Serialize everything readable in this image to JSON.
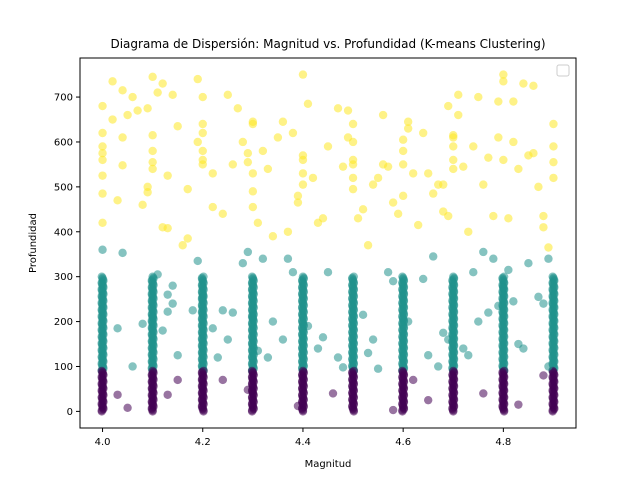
{
  "chart_data": {
    "type": "scatter",
    "title": "Diagrama de Dispersión: Magnitud vs. Profundidad (K-means Clustering)",
    "xlabel": "Magnitud",
    "ylabel": "Profundidad",
    "xlim": [
      3.955,
      4.945
    ],
    "ylim": [
      -37,
      787
    ],
    "xticks": [
      4.0,
      4.2,
      4.4,
      4.6,
      4.8
    ],
    "yticks": [
      0,
      100,
      200,
      300,
      400,
      500,
      600,
      700
    ],
    "grid": false,
    "legend": {
      "placement": "top-right",
      "entries": []
    },
    "marker_opacity": 0.55,
    "columns": [
      4.0,
      4.1,
      4.2,
      4.3,
      4.4,
      4.5,
      4.6,
      4.7,
      4.8,
      4.9
    ],
    "clusters": [
      {
        "color": "#440154",
        "column_range": [
          0,
          90
        ],
        "points": [
          [
            4.03,
            37
          ],
          [
            4.05,
            8
          ],
          [
            4.13,
            37
          ],
          [
            4.15,
            70
          ],
          [
            4.24,
            70
          ],
          [
            4.29,
            48
          ],
          [
            4.39,
            12
          ],
          [
            4.46,
            40
          ],
          [
            4.58,
            3
          ],
          [
            4.62,
            70
          ],
          [
            4.65,
            25
          ],
          [
            4.76,
            40
          ],
          [
            4.83,
            15
          ],
          [
            4.88,
            80
          ]
        ]
      },
      {
        "color": "#21918c",
        "column_range": [
          90,
          300
        ],
        "points": [
          [
            4.0,
            360
          ],
          [
            4.03,
            185
          ],
          [
            4.04,
            353
          ],
          [
            4.06,
            100
          ],
          [
            4.08,
            195
          ],
          [
            4.1,
            210
          ],
          [
            4.11,
            305
          ],
          [
            4.12,
            180
          ],
          [
            4.13,
            260
          ],
          [
            4.13,
            222
          ],
          [
            4.14,
            240
          ],
          [
            4.14,
            280
          ],
          [
            4.15,
            125
          ],
          [
            4.18,
            225
          ],
          [
            4.19,
            335
          ],
          [
            4.2,
            255
          ],
          [
            4.22,
            185
          ],
          [
            4.23,
            120
          ],
          [
            4.24,
            225
          ],
          [
            4.25,
            160
          ],
          [
            4.26,
            220
          ],
          [
            4.28,
            330
          ],
          [
            4.29,
            355
          ],
          [
            4.3,
            210
          ],
          [
            4.31,
            135
          ],
          [
            4.32,
            340
          ],
          [
            4.33,
            120
          ],
          [
            4.34,
            200
          ],
          [
            4.36,
            160
          ],
          [
            4.37,
            340
          ],
          [
            4.38,
            310
          ],
          [
            4.41,
            190
          ],
          [
            4.43,
            140
          ],
          [
            4.44,
            165
          ],
          [
            4.45,
            310
          ],
          [
            4.47,
            120
          ],
          [
            4.48,
            98
          ],
          [
            4.52,
            215
          ],
          [
            4.53,
            130
          ],
          [
            4.54,
            160
          ],
          [
            4.55,
            95
          ],
          [
            4.57,
            310
          ],
          [
            4.58,
            290
          ],
          [
            4.61,
            200
          ],
          [
            4.64,
            295
          ],
          [
            4.65,
            125
          ],
          [
            4.66,
            345
          ],
          [
            4.67,
            100
          ],
          [
            4.68,
            175
          ],
          [
            4.69,
            160
          ],
          [
            4.72,
            140
          ],
          [
            4.73,
            125
          ],
          [
            4.74,
            310
          ],
          [
            4.75,
            200
          ],
          [
            4.76,
            355
          ],
          [
            4.77,
            220
          ],
          [
            4.78,
            340
          ],
          [
            4.79,
            235
          ],
          [
            4.8,
            275
          ],
          [
            4.81,
            315
          ],
          [
            4.82,
            245
          ],
          [
            4.83,
            150
          ],
          [
            4.84,
            140
          ],
          [
            4.85,
            330
          ],
          [
            4.87,
            255
          ],
          [
            4.88,
            240
          ],
          [
            4.89,
            100
          ],
          [
            4.89,
            340
          ]
        ]
      },
      {
        "color": "#fde725",
        "points": [
          [
            4.0,
            420
          ],
          [
            4.0,
            485
          ],
          [
            4.0,
            525
          ],
          [
            4.0,
            560
          ],
          [
            4.0,
            575
          ],
          [
            4.0,
            590
          ],
          [
            4.0,
            620
          ],
          [
            4.0,
            680
          ],
          [
            4.02,
            735
          ],
          [
            4.02,
            650
          ],
          [
            4.03,
            470
          ],
          [
            4.04,
            715
          ],
          [
            4.04,
            610
          ],
          [
            4.04,
            548
          ],
          [
            4.05,
            660
          ],
          [
            4.06,
            700
          ],
          [
            4.07,
            670
          ],
          [
            4.08,
            460
          ],
          [
            4.09,
            500
          ],
          [
            4.09,
            488
          ],
          [
            4.09,
            675
          ],
          [
            4.1,
            745
          ],
          [
            4.1,
            615
          ],
          [
            4.1,
            580
          ],
          [
            4.1,
            555
          ],
          [
            4.1,
            540
          ],
          [
            4.11,
            710
          ],
          [
            4.12,
            410
          ],
          [
            4.12,
            730
          ],
          [
            4.13,
            408
          ],
          [
            4.13,
            525
          ],
          [
            4.14,
            705
          ],
          [
            4.15,
            635
          ],
          [
            4.16,
            370
          ],
          [
            4.17,
            495
          ],
          [
            4.17,
            385
          ],
          [
            4.19,
            740
          ],
          [
            4.19,
            600
          ],
          [
            4.2,
            550
          ],
          [
            4.2,
            560
          ],
          [
            4.2,
            580
          ],
          [
            4.2,
            620
          ],
          [
            4.2,
            700
          ],
          [
            4.2,
            640
          ],
          [
            4.22,
            455
          ],
          [
            4.22,
            530
          ],
          [
            4.24,
            440
          ],
          [
            4.25,
            705
          ],
          [
            4.26,
            550
          ],
          [
            4.27,
            675
          ],
          [
            4.28,
            600
          ],
          [
            4.29,
            575
          ],
          [
            4.29,
            555
          ],
          [
            4.3,
            455
          ],
          [
            4.3,
            490
          ],
          [
            4.3,
            530
          ],
          [
            4.3,
            640
          ],
          [
            4.3,
            645
          ],
          [
            4.31,
            420
          ],
          [
            4.32,
            580
          ],
          [
            4.33,
            540
          ],
          [
            4.34,
            390
          ],
          [
            4.35,
            610
          ],
          [
            4.36,
            645
          ],
          [
            4.37,
            400
          ],
          [
            4.38,
            620
          ],
          [
            4.39,
            480
          ],
          [
            4.39,
            465
          ],
          [
            4.4,
            750
          ],
          [
            4.4,
            560
          ],
          [
            4.4,
            570
          ],
          [
            4.4,
            530
          ],
          [
            4.4,
            505
          ],
          [
            4.41,
            685
          ],
          [
            4.42,
            520
          ],
          [
            4.43,
            420
          ],
          [
            4.44,
            430
          ],
          [
            4.45,
            590
          ],
          [
            4.47,
            675
          ],
          [
            4.48,
            545
          ],
          [
            4.49,
            670
          ],
          [
            4.49,
            610
          ],
          [
            4.5,
            640
          ],
          [
            4.5,
            600
          ],
          [
            4.5,
            560
          ],
          [
            4.5,
            550
          ],
          [
            4.5,
            520
          ],
          [
            4.5,
            495
          ],
          [
            4.51,
            430
          ],
          [
            4.52,
            450
          ],
          [
            4.53,
            370
          ],
          [
            4.54,
            505
          ],
          [
            4.55,
            520
          ],
          [
            4.56,
            660
          ],
          [
            4.56,
            550
          ],
          [
            4.57,
            545
          ],
          [
            4.58,
            465
          ],
          [
            4.59,
            440
          ],
          [
            4.6,
            605
          ],
          [
            4.6,
            580
          ],
          [
            4.6,
            550
          ],
          [
            4.6,
            480
          ],
          [
            4.61,
            645
          ],
          [
            4.61,
            630
          ],
          [
            4.62,
            530
          ],
          [
            4.63,
            415
          ],
          [
            4.64,
            620
          ],
          [
            4.65,
            530
          ],
          [
            4.66,
            485
          ],
          [
            4.67,
            505
          ],
          [
            4.68,
            505
          ],
          [
            4.68,
            445
          ],
          [
            4.69,
            680
          ],
          [
            4.69,
            435
          ],
          [
            4.7,
            540
          ],
          [
            4.7,
            560
          ],
          [
            4.7,
            590
          ],
          [
            4.7,
            610
          ],
          [
            4.7,
            615
          ],
          [
            4.71,
            705
          ],
          [
            4.71,
            660
          ],
          [
            4.72,
            545
          ],
          [
            4.73,
            400
          ],
          [
            4.74,
            590
          ],
          [
            4.75,
            700
          ],
          [
            4.76,
            505
          ],
          [
            4.77,
            565
          ],
          [
            4.78,
            435
          ],
          [
            4.79,
            690
          ],
          [
            4.79,
            610
          ],
          [
            4.8,
            750
          ],
          [
            4.8,
            735
          ],
          [
            4.8,
            560
          ],
          [
            4.81,
            430
          ],
          [
            4.82,
            690
          ],
          [
            4.82,
            600
          ],
          [
            4.83,
            540
          ],
          [
            4.84,
            730
          ],
          [
            4.85,
            570
          ],
          [
            4.86,
            725
          ],
          [
            4.86,
            575
          ],
          [
            4.87,
            500
          ],
          [
            4.88,
            410
          ],
          [
            4.88,
            435
          ],
          [
            4.89,
            365
          ],
          [
            4.9,
            640
          ],
          [
            4.9,
            590
          ],
          [
            4.9,
            555
          ],
          [
            4.9,
            520
          ]
        ]
      }
    ]
  }
}
